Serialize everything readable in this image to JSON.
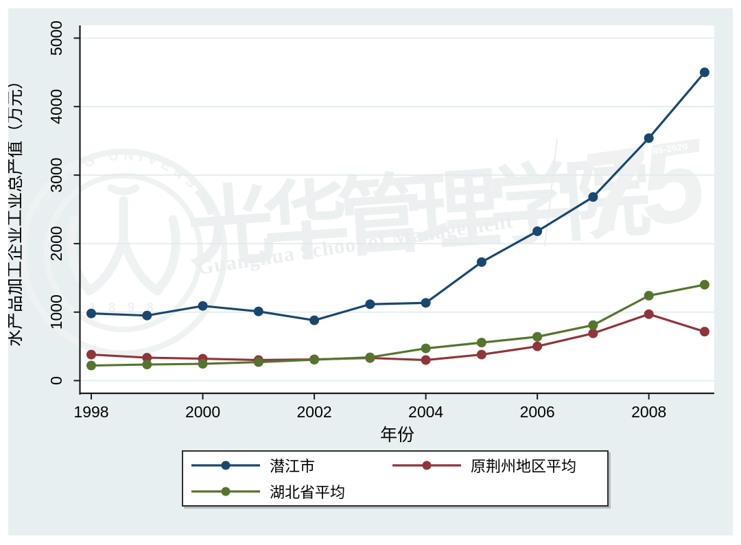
{
  "figure": {
    "y_axis_title": "水产品加工企业工业总产值（万元）",
    "x_axis_title": "年份"
  },
  "watermark": {
    "seal_ring_text": "PEKING UNIVERSITY",
    "seal_year": "1 8 9 8",
    "calligraphy_text": "光华管理学院",
    "latin_text": "Guanghua School of Management",
    "anniversary_number": "75",
    "anniversary_range": "1985-2020"
  },
  "colors": {
    "background": "#e8eff0",
    "plot_background": "#ffffff",
    "gridline": "#dfeaec",
    "axis": "#1a1a1a",
    "watermark": "#eff2f2"
  },
  "chart_data": {
    "type": "line",
    "title": "",
    "xlabel": "年份",
    "ylabel": "水产品加工企业工业总产值（万元）",
    "x": [
      1998,
      1999,
      2000,
      2001,
      2002,
      2003,
      2004,
      2005,
      2006,
      2007,
      2008,
      2009
    ],
    "x_ticks": [
      1998,
      2000,
      2002,
      2004,
      2006,
      2008
    ],
    "y_ticks": [
      0,
      1000,
      2000,
      3000,
      4000,
      5000
    ],
    "xlim": [
      1997.8,
      2009.2
    ],
    "ylim": [
      0,
      5000
    ],
    "grid": true,
    "legend_position": "bottom",
    "marker": "circle",
    "series": [
      {
        "name": "潜江市",
        "color": "#1a476f",
        "values": [
          980,
          950,
          1090,
          1010,
          880,
          1115,
          1135,
          1730,
          2180,
          2680,
          3540,
          4500
        ]
      },
      {
        "name": "原荆州地区平均",
        "color": "#90353b",
        "values": [
          380,
          335,
          320,
          300,
          310,
          330,
          300,
          380,
          500,
          690,
          970,
          715
        ]
      },
      {
        "name": "湖北省平均",
        "color": "#55752f",
        "values": [
          220,
          235,
          245,
          270,
          305,
          340,
          470,
          555,
          640,
          810,
          1240,
          1400
        ]
      }
    ]
  }
}
